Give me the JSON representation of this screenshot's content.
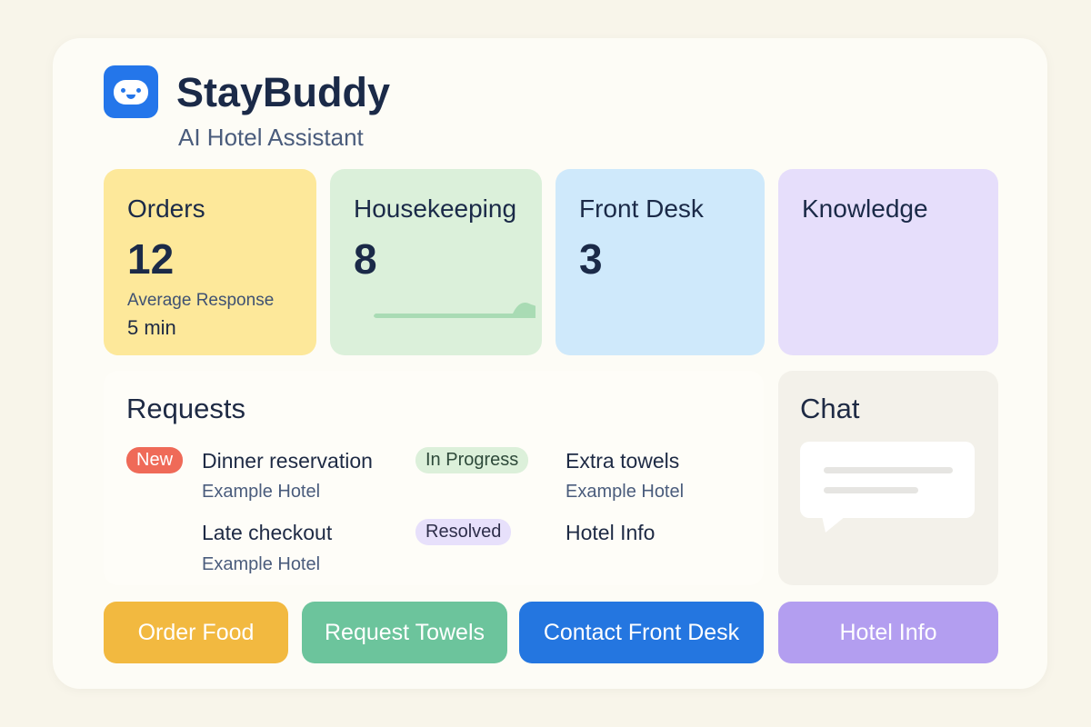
{
  "app": {
    "name": "StayBuddy",
    "subtitle": "AI Hotel Assistant",
    "logo_icon": "robot-face-icon"
  },
  "stats": [
    {
      "label": "Orders",
      "value": "12",
      "sub_label": "Average Response",
      "sub_value": "5 min",
      "color": "#fde89a"
    },
    {
      "label": "Housekeeping",
      "value": "8",
      "color": "#dbf0da"
    },
    {
      "label": "Front Desk",
      "value": "3",
      "color": "#cfe9fb"
    },
    {
      "label": "Knowledge",
      "color": "#e6defb"
    }
  ],
  "requests": {
    "title": "Requests",
    "items": [
      {
        "badge": "New",
        "title": "Dinner reservation",
        "hotel": "Example Hotel"
      },
      {
        "badge": "In Progress",
        "title": "Extra towels",
        "hotel": "Example Hotel"
      },
      {
        "title": "Late checkout",
        "hotel": "Example Hotel"
      },
      {
        "badge": "Resolved",
        "title": "Hotel Info"
      }
    ]
  },
  "chat": {
    "title": "Chat"
  },
  "actions": [
    {
      "label": "Order Food",
      "color": "#f2b940"
    },
    {
      "label": "Request Towels",
      "color": "#6cc49c"
    },
    {
      "label": "Contact Front Desk",
      "color": "#2476e0"
    },
    {
      "label": "Hotel Info",
      "color": "#b39ef0"
    }
  ]
}
